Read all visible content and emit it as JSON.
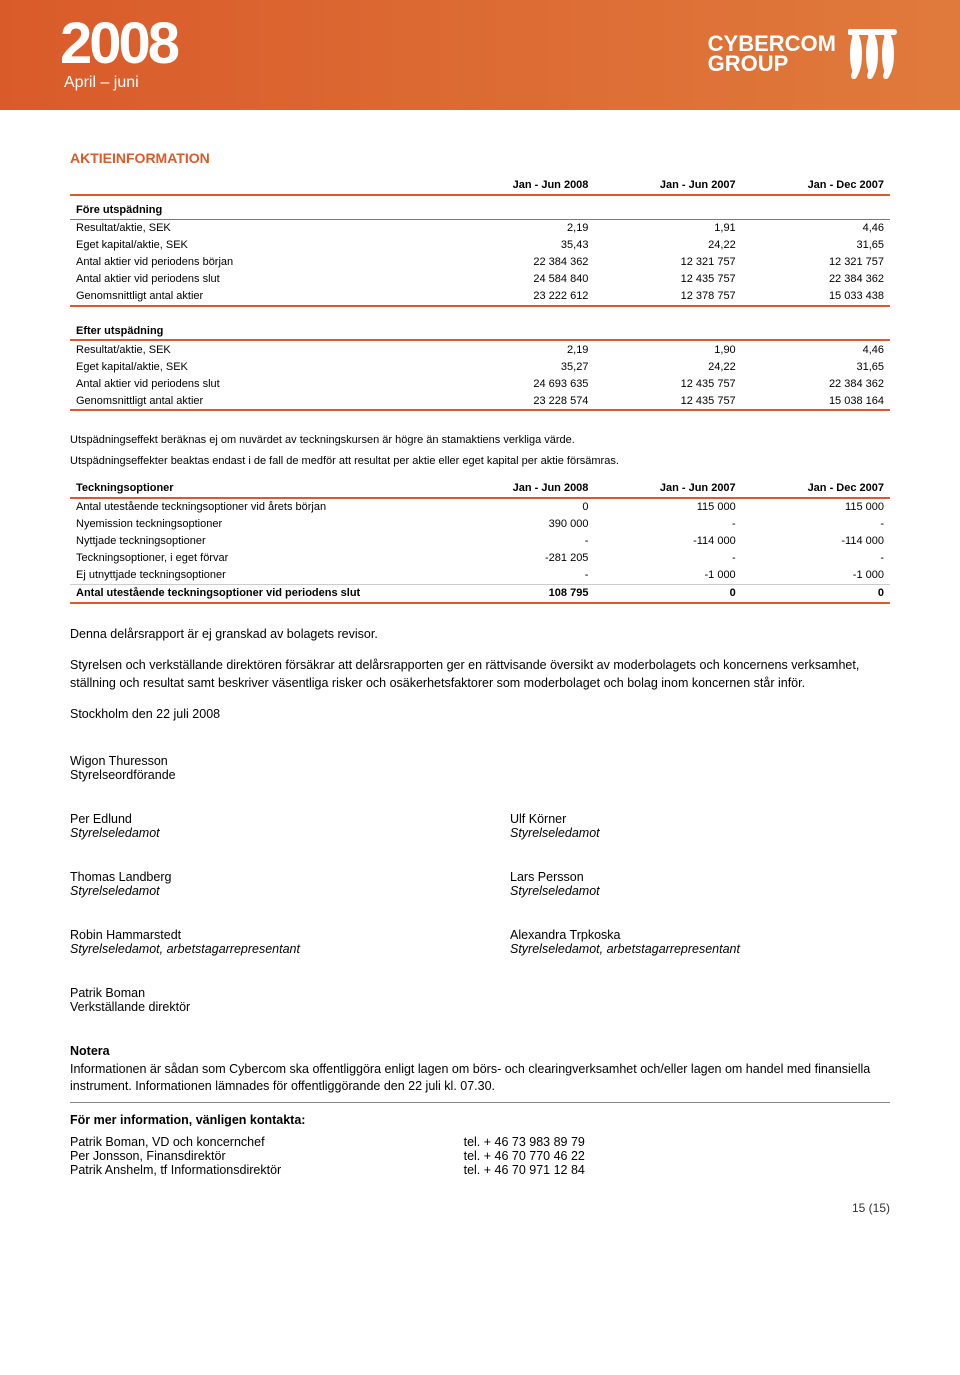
{
  "header": {
    "year": "2008",
    "period": "April – juni",
    "brand_line1": "CYBERCOM",
    "brand_line2": "GROUP"
  },
  "colors": {
    "accent": "#d95b2a",
    "header_grad_start": "#d95b2a",
    "header_grad_end": "#e07a3c",
    "text": "#000000"
  },
  "section_title": "AKTIEINFORMATION",
  "table1": {
    "columns": [
      "",
      "Jan - Jun 2008",
      "Jan - Jun 2007",
      "Jan - Dec 2007"
    ],
    "sub1": "Före utspädning",
    "rows1": [
      [
        "Resultat/aktie, SEK",
        "2,19",
        "1,91",
        "4,46"
      ],
      [
        "Eget kapital/aktie, SEK",
        "35,43",
        "24,22",
        "31,65"
      ],
      [
        "Antal aktier vid periodens början",
        "22 384 362",
        "12 321 757",
        "12 321 757"
      ],
      [
        "Antal aktier vid periodens slut",
        "24 584 840",
        "12 435 757",
        "22 384 362"
      ],
      [
        "Genomsnittligt antal aktier",
        "23 222 612",
        "12 378 757",
        "15 033 438"
      ]
    ],
    "sub2": "Efter utspädning",
    "rows2": [
      [
        "Resultat/aktie, SEK",
        "2,19",
        "1,90",
        "4,46"
      ],
      [
        "Eget kapital/aktie, SEK",
        "35,27",
        "24,22",
        "31,65"
      ],
      [
        "Antal aktier vid periodens slut",
        "24 693 635",
        "12 435 757",
        "22 384 362"
      ],
      [
        "Genomsnittligt antal aktier",
        "23 228 574",
        "12 435 757",
        "15 038 164"
      ]
    ]
  },
  "dilution_note1": "Utspädningseffekt beräknas ej om nuvärdet av teckningskursen är högre än stamaktiens verkliga värde.",
  "dilution_note2": "Utspädningseffekter beaktas endast i de fall de medför att resultat per aktie eller eget kapital per aktie försämras.",
  "table2": {
    "columns": [
      "Teckningsoptioner",
      "Jan - Jun 2008",
      "Jan - Jun 2007",
      "Jan - Dec 2007"
    ],
    "rows": [
      [
        "Antal utestående teckningsoptioner vid årets början",
        "0",
        "115 000",
        "115 000"
      ],
      [
        "Nyemission teckningsoptioner",
        "390 000",
        "-",
        "-"
      ],
      [
        "Nyttjade teckningsoptioner",
        "-",
        "-114 000",
        "-114 000"
      ],
      [
        "Teckningsoptioner, i eget förvar",
        "-281 205",
        "-",
        "-"
      ],
      [
        "Ej utnyttjade teckningsoptioner",
        "-",
        "-1 000",
        "-1 000"
      ]
    ],
    "totals": [
      "Antal utestående teckningsoptioner vid periodens slut",
      "108 795",
      "0",
      "0"
    ]
  },
  "body": {
    "p1": "Denna delårsrapport är ej granskad av bolagets revisor.",
    "p2": "Styrelsen och verkställande direktören försäkrar att delårsrapporten ger en rättvisande översikt av moderbolagets och koncernens verksamhet, ställning och resultat samt beskriver väsentliga risker och osäkerhetsfaktorer som moderbolaget och bolag inom koncernen står inför.",
    "p3": "Stockholm den 22 juli 2008"
  },
  "signatures": [
    [
      {
        "name": "Wigon Thuresson",
        "role": "Styrelseordförande"
      }
    ],
    [
      {
        "name": "Per Edlund",
        "role": "Styrelseledamot"
      },
      {
        "name": "Ulf Körner",
        "role": "Styrelseledamot"
      }
    ],
    [
      {
        "name": "Thomas Landberg",
        "role": "Styrelseledamot"
      },
      {
        "name": "Lars Persson",
        "role": "Styrelseledamot"
      }
    ],
    [
      {
        "name": "Robin Hammarstedt",
        "role": "Styrelseledamot, arbetstagarrepresentant"
      },
      {
        "name": "Alexandra Trpkoska",
        "role": "Styrelseledamot, arbetstagarrepresentant"
      }
    ],
    [
      {
        "name": "Patrik Boman",
        "role": "Verkställande direktör"
      }
    ]
  ],
  "notera": {
    "title": "Notera",
    "text": "Informationen är sådan som Cybercom ska offentliggöra enligt lagen om börs- och clearingverksamhet och/eller lagen om handel med finansiella instrument. Informationen lämnades för offentliggörande den 22 juli kl. 07.30."
  },
  "contact": {
    "title": "För mer information, vänligen kontakta:",
    "rows": [
      {
        "who": "Patrik Boman, VD och koncernchef",
        "tel": "tel. + 46 73 983 89 79"
      },
      {
        "who": "Per Jonsson, Finansdirektör",
        "tel": "tel. + 46 70 770 46 22"
      },
      {
        "who": "Patrik Anshelm, tf Informationsdirektör",
        "tel": "tel. + 46 70 971 12 84"
      }
    ]
  },
  "page_num": "15 (15)"
}
